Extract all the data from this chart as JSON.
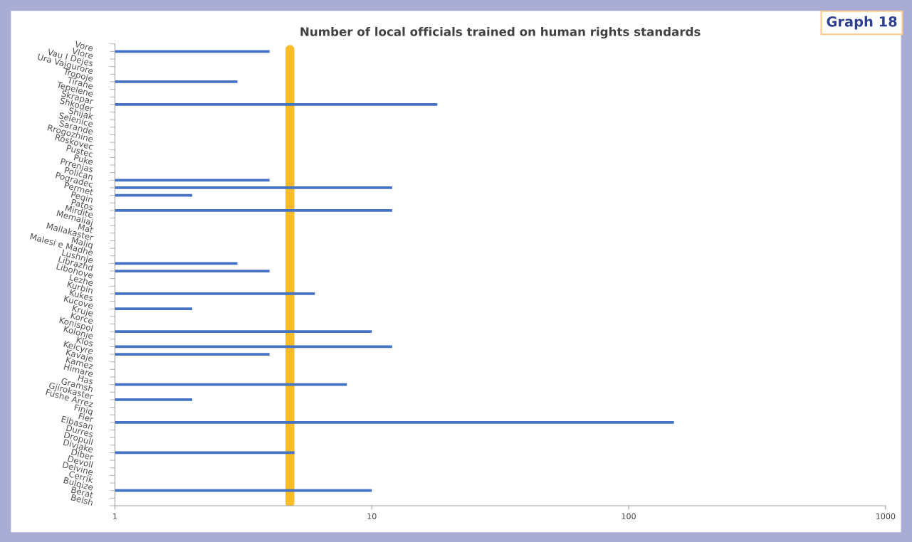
{
  "chart_data": {
    "type": "bar",
    "orientation": "horizontal",
    "title": "Number of local officials trained on human rights standards",
    "annotations": [
      "Graph 18"
    ],
    "categories": [
      "Vore",
      "Vlore",
      "Vau I Dejes",
      "Ura Vajgurore",
      "Tropoje",
      "Tirane",
      "Tepelene",
      "Skrapar",
      "Shkoder",
      "Shijak",
      "Selenice",
      "Sarande",
      "Rrogozhine",
      "Roskovec",
      "Pustec",
      "Puke",
      "Prrenjas",
      "Polican",
      "Pogradec",
      "Permet",
      "Peqin",
      "Patos",
      "Mirdite",
      "Memaliaj",
      "Mat",
      "Mallakaster",
      "Maliq",
      "Malesi e Madhe",
      "Lushnje",
      "Librazhd",
      "Libohove",
      "Lezhe",
      "Kurbin",
      "Kukes",
      "Kucove",
      "Kruje",
      "Korce",
      "Konispol",
      "Kolonje",
      "Klos",
      "Kelcyre",
      "Kavaje",
      "Kamez",
      "Himare",
      "Has",
      "Gramsh",
      "Gjirokaster",
      "Fushe Arrez",
      "Finiq",
      "Fier",
      "Elbasan",
      "Durres",
      "Dropull",
      "Divjake",
      "Diber",
      "Devoll",
      "Delvine",
      "Cerrik",
      "Bulqize",
      "Berat",
      "Belsh"
    ],
    "values": [
      null,
      4,
      null,
      null,
      null,
      3,
      null,
      null,
      18,
      null,
      null,
      null,
      null,
      null,
      null,
      null,
      null,
      null,
      4,
      12,
      2,
      null,
      12,
      null,
      null,
      null,
      null,
      null,
      null,
      3,
      4,
      null,
      null,
      6,
      null,
      2,
      null,
      null,
      10,
      null,
      12,
      4,
      null,
      null,
      null,
      8,
      null,
      2,
      null,
      null,
      150,
      null,
      null,
      null,
      5,
      null,
      null,
      null,
      null,
      10,
      null
    ],
    "color": "#4472c4",
    "log": "x",
    "xlim": [
      1,
      1000
    ],
    "xticks": [
      1,
      10,
      100,
      1000
    ],
    "ref_lines": [
      {
        "axis": "x",
        "value": 4.8,
        "color": "#fbbc2a"
      }
    ],
    "grid": false
  }
}
